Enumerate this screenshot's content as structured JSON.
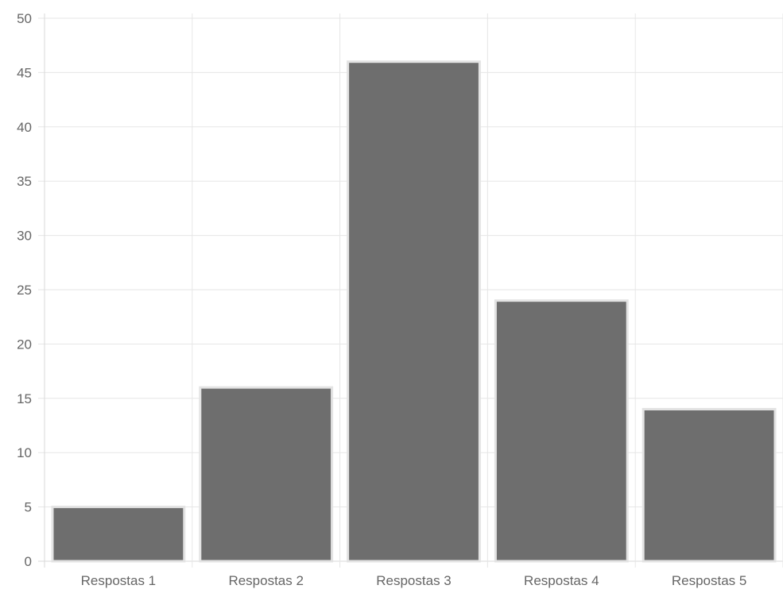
{
  "chart_data": {
    "type": "bar",
    "title": "",
    "xlabel": "",
    "ylabel": "",
    "categories": [
      "Respostas 1",
      "Respostas 2",
      "Respostas 3",
      "Respostas 4",
      "Respostas 5"
    ],
    "values": [
      5,
      16,
      46,
      24,
      14
    ],
    "ylim": [
      0,
      50
    ],
    "y_ticks": [
      "0",
      "5",
      "10",
      "15",
      "20",
      "25",
      "30",
      "35",
      "40",
      "45",
      "50"
    ],
    "grid": true,
    "legend": "none",
    "colors": {
      "bar_fill": "#6e6e6e",
      "bar_border": "#e3e3e3",
      "grid": "#e6e6e6",
      "tick_text": "#666666"
    }
  }
}
